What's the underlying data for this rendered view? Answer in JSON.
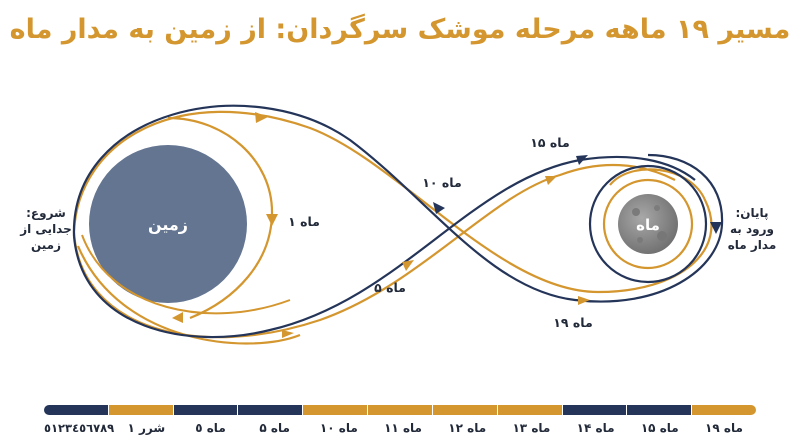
{
  "title": "مسیر ۱۹ ماهه مرحله موشک سرگردان: از زمین به مدار ماه",
  "colors": {
    "navy": "#243559",
    "gold": "#d4962e",
    "earth": "#647591",
    "moon": "#8c8c8c",
    "text": "#222a3a"
  },
  "bodies": {
    "earth": "زمین",
    "moon": "ماه"
  },
  "start_label": [
    "شروع:",
    "جدایی از",
    "زمین"
  ],
  "end_label": [
    "پایان:",
    "ورود به",
    "مدار ماه"
  ],
  "path_labels": {
    "m1": "ماه ۱",
    "m5": "ماه ۵",
    "m10": "ماه ۱۰",
    "m15": "ماه ۱۵",
    "m19": "ماه ۱۹"
  },
  "timeline": {
    "segments": [
      {
        "label": "٥١٢٣٤٥٦٧٨٩",
        "color": "navy"
      },
      {
        "label": "شرر ۱",
        "color": "gold"
      },
      {
        "label": "ماه ٥",
        "color": "navy"
      },
      {
        "label": "ماه ۵",
        "color": "navy"
      },
      {
        "label": "ماه ۱۰",
        "color": "gold"
      },
      {
        "label": "ماه ۱۱",
        "color": "gold"
      },
      {
        "label": "ماه ۱۲",
        "color": "gold"
      },
      {
        "label": "ماه ۱۳",
        "color": "gold"
      },
      {
        "label": "ماه ۱۴",
        "color": "navy"
      },
      {
        "label": "ماه ۱۵",
        "color": "navy"
      },
      {
        "label": "ماه ۱۹",
        "color": "gold"
      }
    ]
  }
}
